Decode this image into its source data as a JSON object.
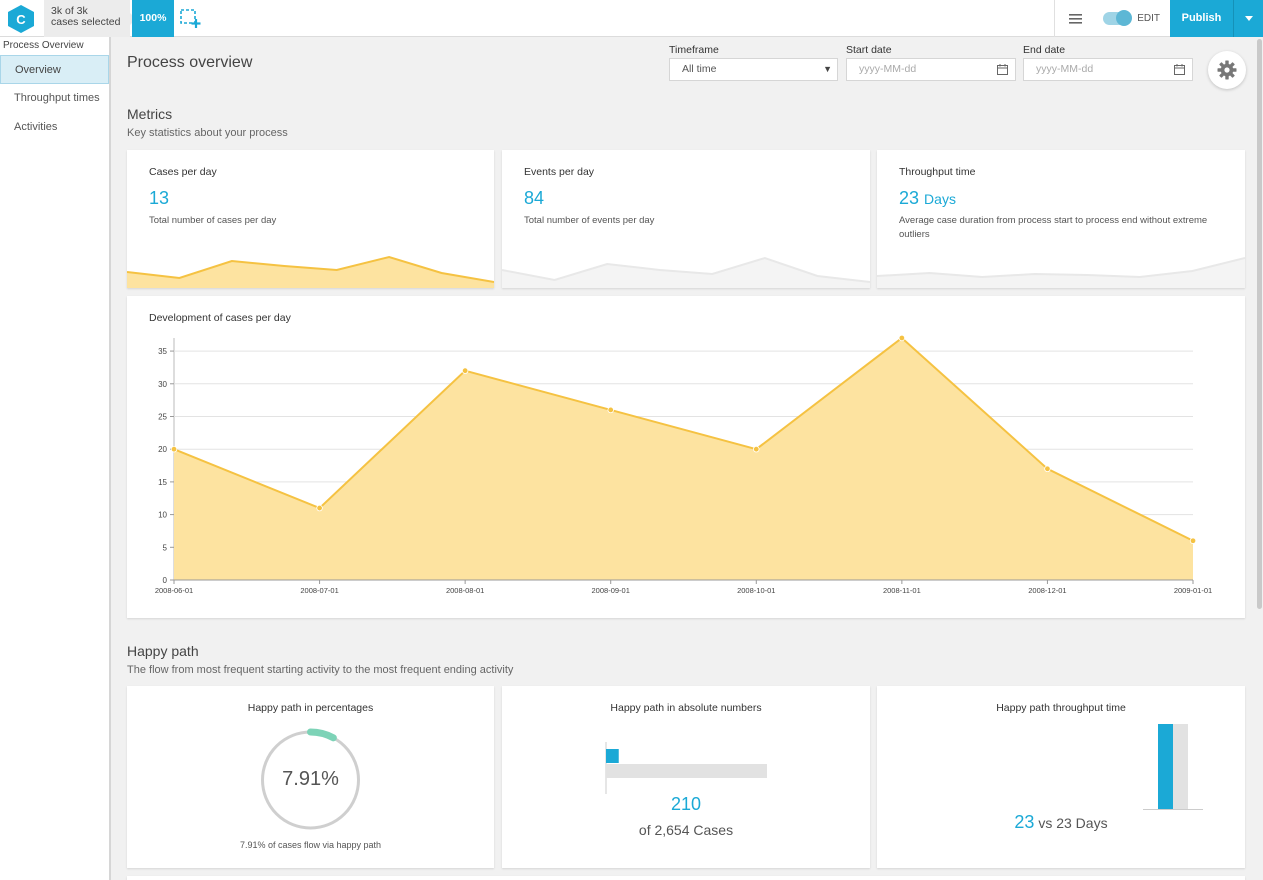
{
  "topbar": {
    "logo_letter": "C",
    "selection_line1": "3k of 3k",
    "selection_line2": "cases selected",
    "percent": "100%",
    "edit_label": "EDIT",
    "publish_label": "Publish"
  },
  "sidebar": {
    "title": "Process Overview",
    "items": [
      {
        "label": "Overview",
        "active": true
      },
      {
        "label": "Throughput times",
        "active": false
      },
      {
        "label": "Activities",
        "active": false
      }
    ]
  },
  "header": {
    "title": "Process overview",
    "timeframe_label": "Timeframe",
    "timeframe_value": "All time",
    "start_label": "Start date",
    "start_placeholder": "yyyy-MM-dd",
    "end_label": "End date",
    "end_placeholder": "yyyy-MM-dd"
  },
  "metrics": {
    "title": "Metrics",
    "subtitle": "Key statistics about your process",
    "cards": [
      {
        "title": "Cases per day",
        "value": "13",
        "unit": "",
        "desc": "Total number of cases per day",
        "spark": [
          16,
          10,
          27,
          22,
          18,
          31,
          15,
          6
        ]
      },
      {
        "title": "Events per day",
        "value": "84",
        "unit": "",
        "desc": "Total number of events per day",
        "spark": [
          18,
          8,
          24,
          18,
          14,
          30,
          12,
          6
        ]
      },
      {
        "title": "Throughput time",
        "value": "23",
        "unit": "Days",
        "desc": "Average case duration from process start to process end without extreme outliers",
        "spark": [
          12,
          15,
          11,
          14,
          13,
          11,
          17,
          30
        ]
      }
    ]
  },
  "chart_data": {
    "type": "area",
    "title": "Development of cases per day",
    "x": [
      "2008-06-01",
      "2008-07-01",
      "2008-08-01",
      "2008-09-01",
      "2008-10-01",
      "2008-11-01",
      "2008-12-01",
      "2009-01-01"
    ],
    "values": [
      20,
      11,
      32,
      26,
      20,
      37,
      17,
      6
    ],
    "ylim": [
      0,
      37
    ],
    "yticks": [
      0,
      5,
      10,
      15,
      20,
      25,
      30,
      35
    ],
    "grid": true,
    "color": "#f5c242",
    "fill": "#fde3a0"
  },
  "happy_path": {
    "title": "Happy path",
    "subtitle": "The flow from most frequent starting activity to the most frequent ending activity",
    "percent_card": {
      "title": "Happy path in percentages",
      "value": "7.91%",
      "fraction": 0.0791,
      "caption": "7.91% of cases flow via happy path"
    },
    "absolute_card": {
      "title": "Happy path in absolute numbers",
      "value": "210",
      "total_text": "of 2,654 Cases",
      "happy": 210,
      "total": 2654
    },
    "throughput_card": {
      "title": "Happy path throughput time",
      "value": "23",
      "vs_text": "vs 23 Days",
      "happy_days": 23,
      "overall_days": 23
    }
  },
  "colors": {
    "accent": "#1ba9d6",
    "chart": "#f5c242",
    "donut": "#7dd3b7"
  }
}
